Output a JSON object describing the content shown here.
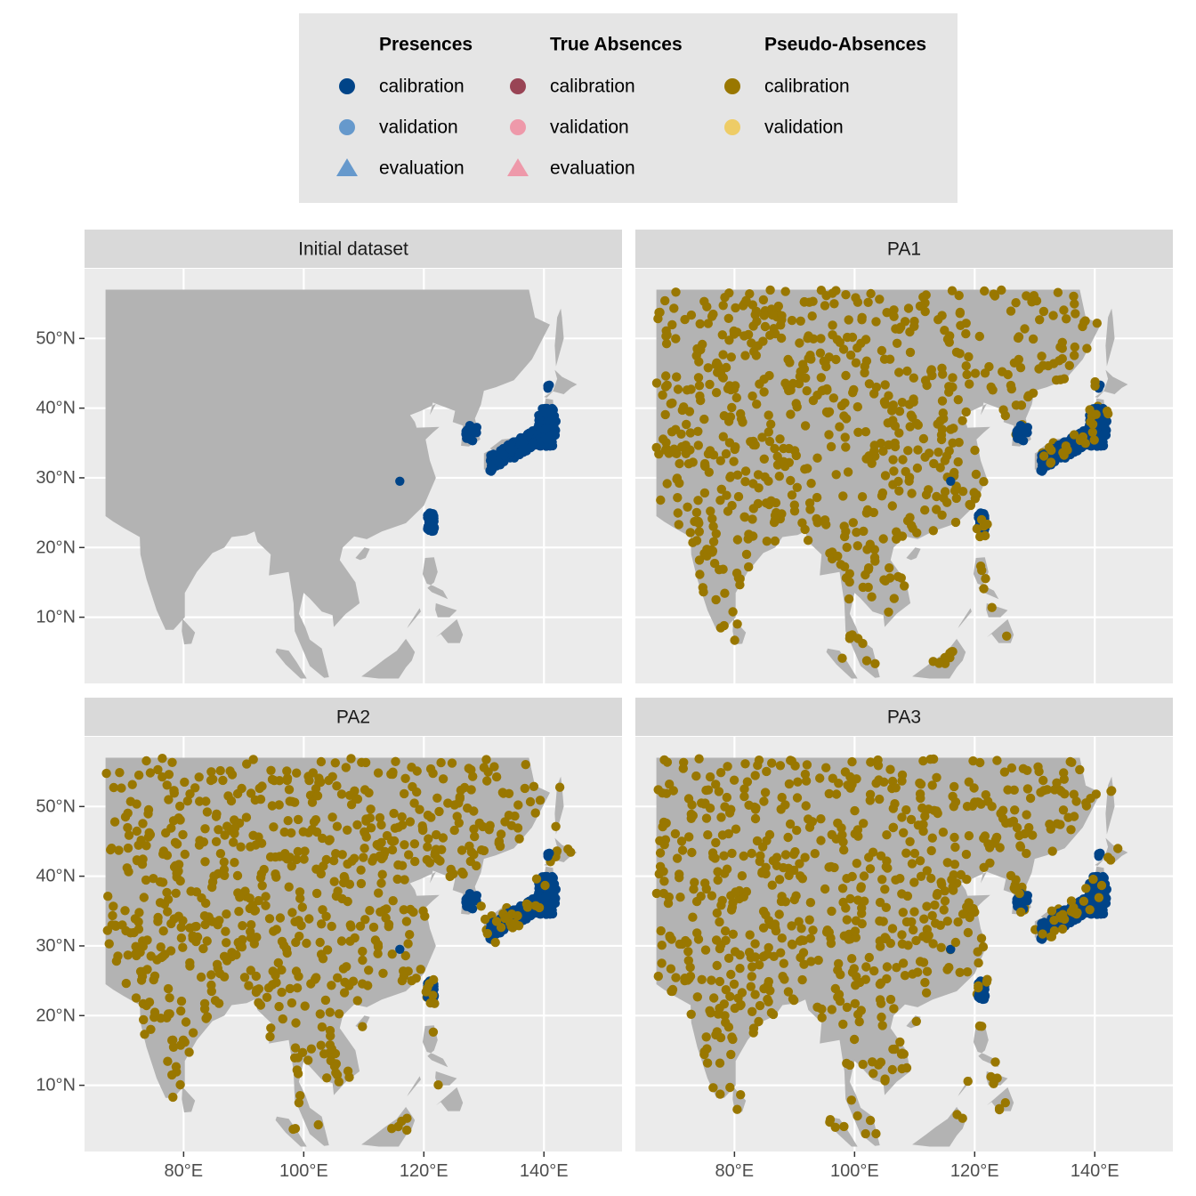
{
  "colors": {
    "panel_bg": "#EBEBEB",
    "grid": "#FFFFFF",
    "land": "#B3B3B3",
    "strip_bg": "#D9D9D9",
    "legend_bg": "#E5E5E5",
    "axis_text": "#4D4D4D",
    "presence_calibration": "#004488",
    "presence_validation": "#6699CC",
    "presence_evaluation": "#6699CC",
    "absence_calibration": "#994455",
    "absence_validation": "#EE99AA",
    "absence_evaluation": "#EE99AA",
    "pseudo_calibration": "#997700",
    "pseudo_validation": "#EECC66"
  },
  "legend": {
    "groups": [
      {
        "title": "Presences",
        "entries": [
          {
            "label": "calibration",
            "shape": "circle",
            "color_key": "presence_calibration"
          },
          {
            "label": "validation",
            "shape": "circle",
            "color_key": "presence_validation"
          },
          {
            "label": "evaluation",
            "shape": "triangle",
            "color_key": "presence_evaluation"
          }
        ]
      },
      {
        "title": "True Absences",
        "entries": [
          {
            "label": "calibration",
            "shape": "circle",
            "color_key": "absence_calibration"
          },
          {
            "label": "validation",
            "shape": "circle",
            "color_key": "absence_validation"
          },
          {
            "label": "evaluation",
            "shape": "triangle",
            "color_key": "absence_evaluation"
          }
        ]
      },
      {
        "title": "Pseudo-Absences",
        "entries": [
          {
            "label": "calibration",
            "shape": "circle",
            "color_key": "pseudo_calibration"
          },
          {
            "label": "validation",
            "shape": "circle",
            "color_key": "pseudo_validation"
          }
        ]
      }
    ]
  },
  "chart_data": {
    "type": "scatter",
    "subtype": "faceted map of species occurrence points",
    "facets": [
      "Initial dataset",
      "PA1",
      "PA2",
      "PA3"
    ],
    "x_ticks": [
      80,
      100,
      120,
      140
    ],
    "x_tick_labels": [
      "80°E",
      "100°E",
      "120°E",
      "140°E"
    ],
    "y_ticks": [
      10,
      20,
      30,
      40,
      50
    ],
    "y_tick_labels": [
      "10°N",
      "20°N",
      "30°N",
      "40°N",
      "50°N"
    ],
    "xlim": [
      63.5,
      153
    ],
    "ylim": [
      0.5,
      60
    ],
    "grid": true,
    "legend_position": "top",
    "land_region_lon": [
      67,
      148
    ],
    "land_region_lat": [
      3,
      57
    ],
    "presence_clusters": [
      {
        "lon": [
          131,
          142
        ],
        "lat": [
          31.5,
          40
        ],
        "count": 260
      },
      {
        "lon": [
          120.5,
          121.8
        ],
        "lat": [
          22.3,
          25
        ],
        "count": 45
      },
      {
        "lon": [
          127,
          129
        ],
        "lat": [
          35,
          37.5
        ],
        "count": 20
      },
      {
        "lon": [
          140.2,
          141.4
        ],
        "lat": [
          42.8,
          43.6
        ],
        "count": 3
      },
      {
        "lon": [
          115.6,
          116.2
        ],
        "lat": [
          29.4,
          30
        ],
        "count": 1
      }
    ],
    "pseudo_absences_per_PA": 700
  }
}
